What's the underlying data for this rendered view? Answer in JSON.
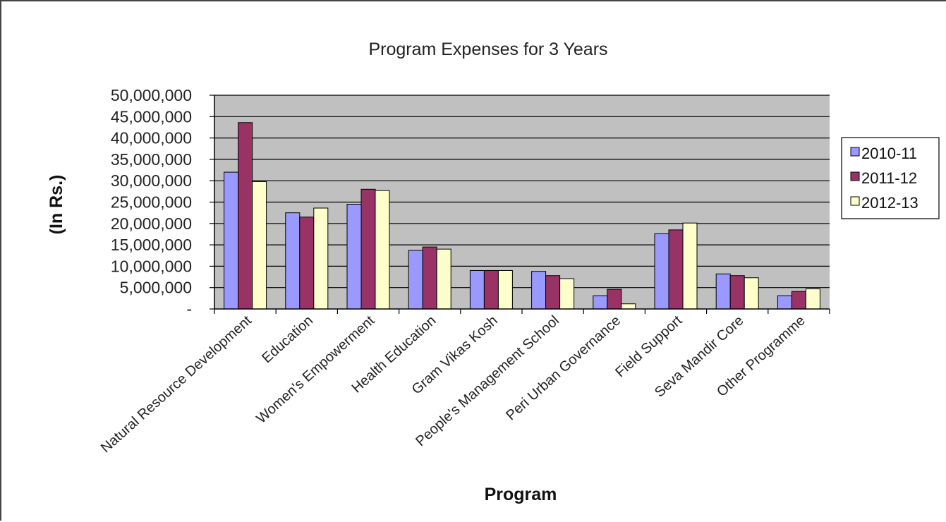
{
  "chart_data": {
    "type": "bar",
    "title": "Program Expenses for 3 Years",
    "xlabel": "Program",
    "ylabel": "(In Rs.)",
    "ylim": [
      0,
      50000000
    ],
    "yticks": [
      0,
      5000000,
      10000000,
      15000000,
      20000000,
      25000000,
      30000000,
      35000000,
      40000000,
      45000000,
      50000000
    ],
    "ytick_labels": [
      "-",
      "5,000,000",
      "10,000,000",
      "15,000,000",
      "20,000,000",
      "25,000,000",
      "30,000,000",
      "35,000,000",
      "40,000,000",
      "45,000,000",
      "50,000,000"
    ],
    "categories": [
      "Natural Resource Development",
      "Education",
      "Women's Empowerment",
      "Health Education",
      "Gram Vikas Kosh",
      "People's Management School",
      "Peri Urban Governance",
      "Field Support",
      "Seva Mandir Core",
      "Other Programme"
    ],
    "series": [
      {
        "name": "2010-11",
        "color": "#9999ff",
        "values": [
          32000000,
          22500000,
          24500000,
          13700000,
          9000000,
          8800000,
          3100000,
          17600000,
          8200000,
          3100000
        ]
      },
      {
        "name": "2011-12",
        "color": "#993366",
        "values": [
          43600000,
          21500000,
          28000000,
          14500000,
          9000000,
          7800000,
          4600000,
          18500000,
          7800000,
          4100000
        ]
      },
      {
        "name": "2012-13",
        "color": "#ffffcc",
        "values": [
          29800000,
          23600000,
          27700000,
          14000000,
          9000000,
          7100000,
          1200000,
          20100000,
          7300000,
          4700000
        ]
      }
    ],
    "grid": true,
    "plot_background": "#c0c0c0",
    "legend_position": "right"
  }
}
